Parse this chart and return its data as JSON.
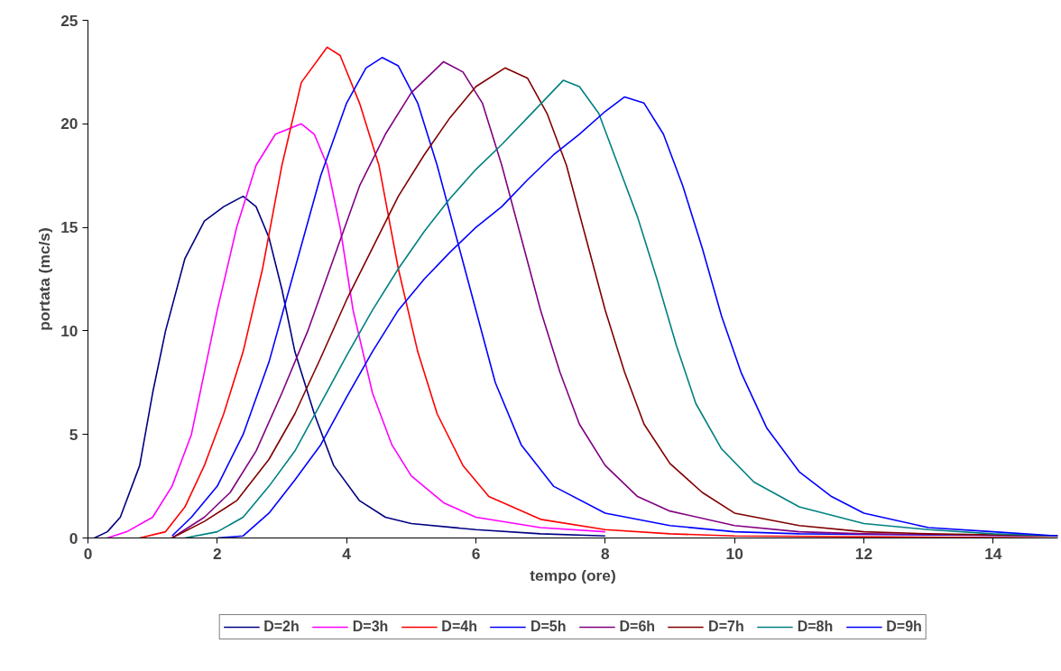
{
  "chart_data": {
    "type": "line",
    "xlabel": "tempo (ore)",
    "ylabel": "portata (mc/s)",
    "xlim": [
      0,
      15
    ],
    "xticks": [
      0,
      2,
      4,
      6,
      8,
      10,
      12,
      14
    ],
    "ylim": [
      0,
      25
    ],
    "yticks": [
      0,
      5,
      10,
      15,
      20,
      25
    ],
    "grid": false,
    "legend": "bottom",
    "marker": "none",
    "line_style": "solid",
    "series": [
      {
        "name": "D=2h",
        "color": "#000080",
        "x": [
          0.1,
          0.3,
          0.5,
          0.8,
          1,
          1.2,
          1.5,
          1.8,
          2.1,
          2.4,
          2.6,
          2.8,
          3,
          3.2,
          3.5,
          3.8,
          4.2,
          4.6,
          5,
          6,
          7,
          8
        ],
        "values": [
          0,
          0.3,
          1,
          3.5,
          7,
          10,
          13.5,
          15.3,
          16,
          16.5,
          16,
          14.5,
          12,
          9,
          6,
          3.5,
          1.8,
          1,
          0.7,
          0.4,
          0.2,
          0.1
        ]
      },
      {
        "name": "D=3h",
        "color": "#ff00ff",
        "x": [
          0.3,
          0.6,
          1,
          1.3,
          1.6,
          1.8,
          2,
          2.3,
          2.6,
          2.9,
          3.3,
          3.5,
          3.7,
          3.9,
          4.1,
          4.4,
          4.7,
          5,
          5.5,
          6,
          7,
          8
        ],
        "values": [
          0,
          0.3,
          1,
          2.5,
          5,
          8,
          11,
          15,
          18,
          19.5,
          20,
          19.5,
          18,
          15,
          11,
          7,
          4.5,
          3,
          1.7,
          1,
          0.5,
          0.3
        ]
      },
      {
        "name": "D=4h",
        "color": "#ff0000",
        "x": [
          0.8,
          1.2,
          1.5,
          1.8,
          2.1,
          2.4,
          2.7,
          3,
          3.3,
          3.7,
          3.9,
          4.2,
          4.5,
          4.8,
          5.1,
          5.4,
          5.8,
          6.2,
          7,
          8,
          9,
          10,
          15
        ],
        "values": [
          0,
          0.3,
          1.5,
          3.5,
          6,
          9,
          13,
          18,
          22,
          23.7,
          23.3,
          21,
          18,
          13,
          9,
          6,
          3.5,
          2,
          0.9,
          0.4,
          0.2,
          0.1,
          0
        ]
      },
      {
        "name": "D=5h",
        "color": "#0000ff",
        "x": [
          1.3,
          1.6,
          2,
          2.4,
          2.8,
          3.2,
          3.6,
          4,
          4.3,
          4.55,
          4.8,
          5.1,
          5.4,
          5.7,
          6,
          6.3,
          6.7,
          7.2,
          8,
          9,
          10,
          11,
          15
        ],
        "values": [
          0.1,
          1,
          2.5,
          5,
          8.5,
          13,
          17.5,
          21,
          22.7,
          23.2,
          22.8,
          21,
          18,
          14.5,
          11,
          7.5,
          4.5,
          2.5,
          1.2,
          0.6,
          0.3,
          0.2,
          0.1
        ]
      },
      {
        "name": "D=6h",
        "color": "#800080",
        "x": [
          1.3,
          1.8,
          2.2,
          2.6,
          3,
          3.4,
          3.8,
          4.2,
          4.6,
          5,
          5.5,
          5.8,
          6.1,
          6.4,
          6.7,
          7,
          7.3,
          7.6,
          8,
          8.5,
          9,
          10,
          11,
          12,
          15
        ],
        "values": [
          0,
          1,
          2.2,
          4.2,
          7,
          10,
          13.5,
          17,
          19.5,
          21.5,
          23,
          22.5,
          21,
          18,
          14.5,
          11,
          8,
          5.5,
          3.5,
          2,
          1.3,
          0.6,
          0.3,
          0.2,
          0.1
        ]
      },
      {
        "name": "D=7h",
        "color": "#800000",
        "x": [
          1.3,
          1.8,
          2.3,
          2.8,
          3.2,
          3.6,
          4,
          4.4,
          4.8,
          5.2,
          5.6,
          6,
          6.45,
          6.8,
          7.1,
          7.4,
          7.7,
          8,
          8.3,
          8.6,
          9,
          9.5,
          10,
          11,
          12,
          13,
          15
        ],
        "values": [
          0,
          0.8,
          1.8,
          3.8,
          6,
          8.7,
          11.5,
          14,
          16.5,
          18.5,
          20.3,
          21.8,
          22.7,
          22.2,
          20.5,
          18,
          14.5,
          11,
          8,
          5.5,
          3.6,
          2.2,
          1.2,
          0.6,
          0.3,
          0.2,
          0.1
        ]
      },
      {
        "name": "D=8h",
        "color": "#008080",
        "x": [
          1.5,
          2,
          2.4,
          2.8,
          3.2,
          3.6,
          4,
          4.4,
          4.8,
          5.2,
          5.6,
          6,
          6.4,
          6.8,
          7.35,
          7.6,
          7.9,
          8.2,
          8.5,
          8.8,
          9.1,
          9.4,
          9.8,
          10.3,
          11,
          12,
          13,
          14,
          15
        ],
        "values": [
          0,
          0.3,
          1,
          2.5,
          4.2,
          6.5,
          8.8,
          11,
          13,
          14.8,
          16.4,
          17.8,
          19,
          20.3,
          22.1,
          21.8,
          20.5,
          18,
          15.5,
          12.5,
          9.3,
          6.5,
          4.3,
          2.7,
          1.5,
          0.7,
          0.4,
          0.2,
          0.1
        ]
      },
      {
        "name": "D=9h",
        "color": "#0000ff",
        "x": [
          2,
          2.4,
          2.8,
          3.2,
          3.6,
          4,
          4.4,
          4.8,
          5.2,
          5.6,
          6,
          6.4,
          6.8,
          7.2,
          7.6,
          8,
          8.3,
          8.6,
          8.9,
          9.2,
          9.5,
          9.8,
          10.1,
          10.5,
          11,
          11.5,
          12,
          13,
          14,
          15
        ],
        "values": [
          0,
          0.1,
          1.2,
          2.8,
          4.5,
          6.8,
          9,
          11,
          12.5,
          13.8,
          15,
          16,
          17.3,
          18.5,
          19.5,
          20.6,
          21.3,
          21,
          19.5,
          17,
          14,
          10.7,
          8,
          5.3,
          3.2,
          2,
          1.2,
          0.5,
          0.3,
          0.1
        ]
      }
    ]
  }
}
